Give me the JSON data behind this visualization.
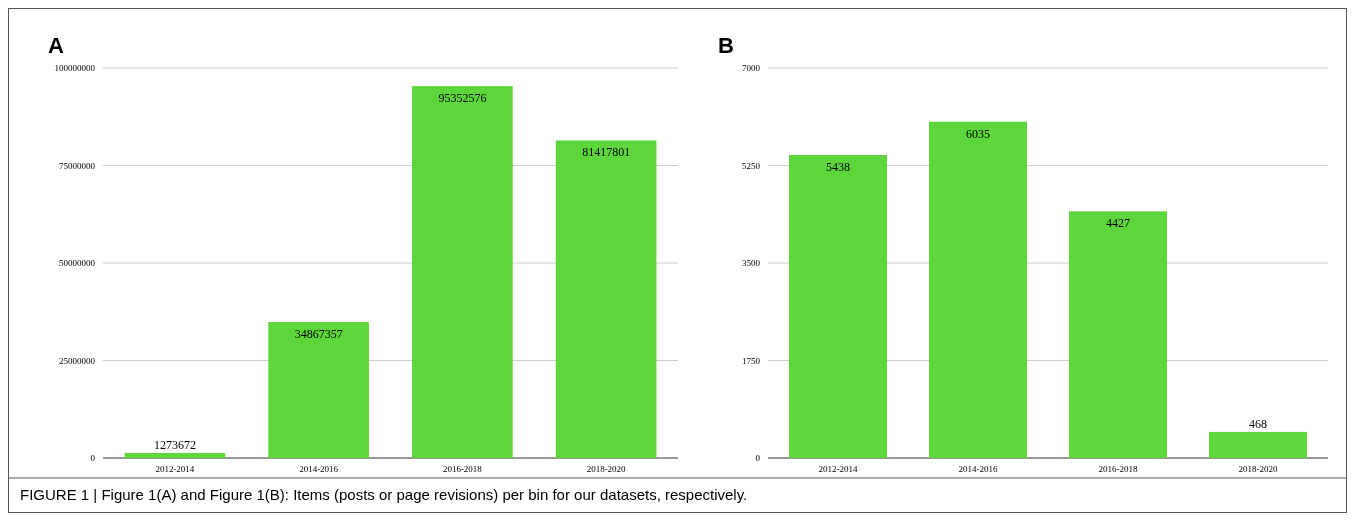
{
  "chart_data": [
    {
      "type": "bar",
      "title": "A",
      "categories": [
        "2012-2014",
        "2014-2016",
        "2016-2018",
        "2018-2020"
      ],
      "values": [
        1273672,
        34867357,
        95352576,
        81417801
      ],
      "color": "#5cd63a",
      "ylim": [
        0,
        100000000
      ],
      "yticks": [
        0,
        25000000,
        50000000,
        75000000,
        100000000
      ],
      "grid": "y",
      "data_labels": true,
      "annotations": [
        "FIGURE 1 | Figure 1(A) and Figure 1(B): Items (posts or page revisions) per bin for our datasets, respectively."
      ]
    },
    {
      "type": "bar",
      "title": "B",
      "categories": [
        "2012-2014",
        "2014-2016",
        "2016-2018",
        "2018-2020"
      ],
      "values": [
        5438,
        6035,
        4427,
        468
      ],
      "color": "#5cd63a",
      "ylim": [
        0,
        7000
      ],
      "yticks": [
        0,
        1750,
        3500,
        5250,
        7000
      ],
      "grid": "y",
      "data_labels": true
    }
  ]
}
